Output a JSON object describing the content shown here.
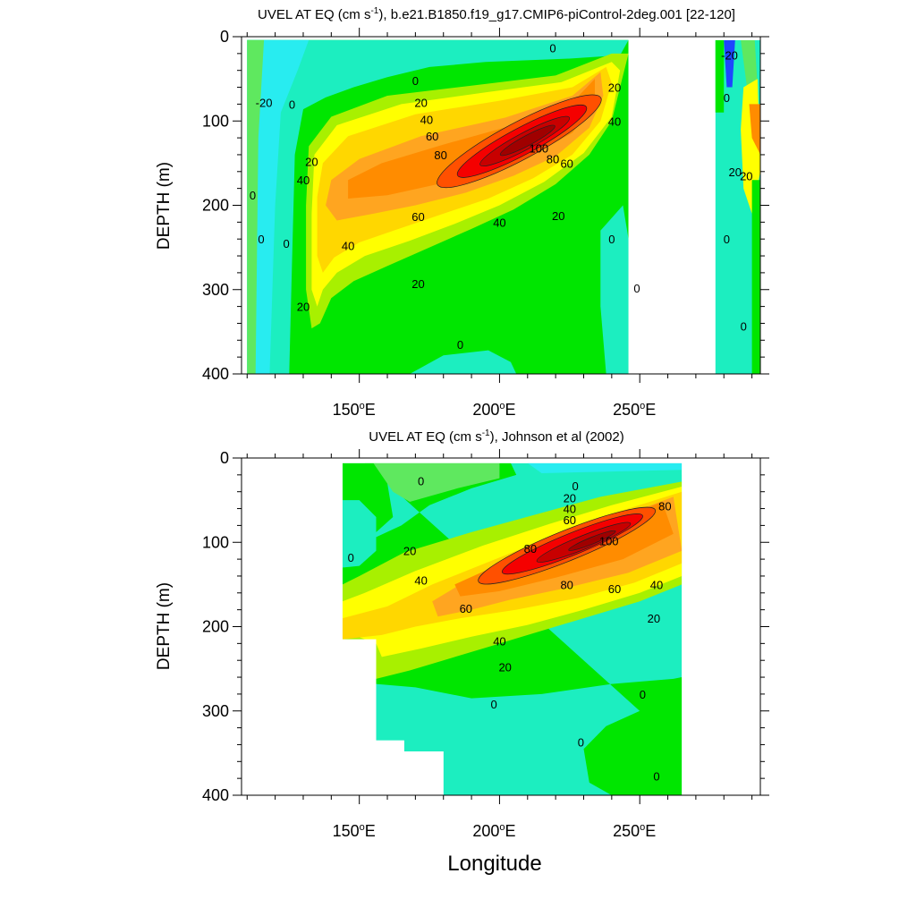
{
  "chart_data": [
    {
      "type": "contour",
      "title_main": "UVEL AT EQ (cm s",
      "title_sup": "-1",
      "title_rest": "), b.e21.B1850.f19_g17.CMIP6-piControl-2deg.001 [22-120]",
      "ylabel": "DEPTH (m)",
      "xlabel": "",
      "xlim": [
        108,
        293
      ],
      "ylim": [
        0,
        400
      ],
      "y_reversed": true,
      "x_ticks": [
        150,
        200,
        250
      ],
      "x_tick_labels": [
        "150",
        "200",
        "250"
      ],
      "x_tick_suffix": "E",
      "y_ticks": [
        0,
        100,
        200,
        300,
        400
      ],
      "y_tick_labels": [
        "0",
        "100",
        "200",
        "300",
        "400"
      ],
      "contour_levels": [
        -20,
        0,
        20,
        40,
        60,
        80,
        100
      ],
      "core": {
        "lon": 208,
        "depth": 125,
        "max_speed": 100
      },
      "contour_labels": [
        {
          "text": "0",
          "lon": 219,
          "depth": 13
        },
        {
          "text": "0",
          "lon": 170,
          "depth": 52
        },
        {
          "text": "20",
          "lon": 172,
          "depth": 78
        },
        {
          "text": "40",
          "lon": 174,
          "depth": 98
        },
        {
          "text": "60",
          "lon": 176,
          "depth": 118
        },
        {
          "text": "80",
          "lon": 179,
          "depth": 140
        },
        {
          "text": "100",
          "lon": 214,
          "depth": 132
        },
        {
          "text": "80",
          "lon": 219,
          "depth": 145
        },
        {
          "text": "60",
          "lon": 224,
          "depth": 150
        },
        {
          "text": "40",
          "lon": 241,
          "depth": 100
        },
        {
          "text": "20",
          "lon": 241,
          "depth": 60
        },
        {
          "text": "60",
          "lon": 171,
          "depth": 213
        },
        {
          "text": "40",
          "lon": 200,
          "depth": 220
        },
        {
          "text": "20",
          "lon": 221,
          "depth": 212
        },
        {
          "text": "40",
          "lon": 146,
          "depth": 248
        },
        {
          "text": "20",
          "lon": 171,
          "depth": 293
        },
        {
          "text": "20",
          "lon": 133,
          "depth": 148
        },
        {
          "text": "40",
          "lon": 130,
          "depth": 170
        },
        {
          "text": "20",
          "lon": 130,
          "depth": 320
        },
        {
          "text": "0",
          "lon": 186,
          "depth": 365
        },
        {
          "text": "-20",
          "lon": 116,
          "depth": 78
        },
        {
          "text": "0",
          "lon": 126,
          "depth": 80
        },
        {
          "text": "0",
          "lon": 112,
          "depth": 188
        },
        {
          "text": "0",
          "lon": 115,
          "depth": 240
        },
        {
          "text": "0",
          "lon": 124,
          "depth": 245
        },
        {
          "text": "0",
          "lon": 240,
          "depth": 240
        },
        {
          "text": "0",
          "lon": 249,
          "depth": 298
        },
        {
          "text": "-20",
          "lon": 282,
          "depth": 22
        },
        {
          "text": "0",
          "lon": 281,
          "depth": 72
        },
        {
          "text": "20",
          "lon": 284,
          "depth": 160
        },
        {
          "text": "20",
          "lon": 288,
          "depth": 165
        },
        {
          "text": "0",
          "lon": 281,
          "depth": 240
        },
        {
          "text": "0",
          "lon": 287,
          "depth": 343
        }
      ]
    },
    {
      "type": "contour",
      "title_main": "UVEL AT EQ (cm s",
      "title_sup": "-1",
      "title_rest": "), Johnson et al (2002)",
      "ylabel": "DEPTH (m)",
      "xlabel": "Longitude",
      "xlim": [
        108,
        293
      ],
      "ylim": [
        0,
        400
      ],
      "y_reversed": true,
      "x_ticks": [
        150,
        200,
        250
      ],
      "x_tick_labels": [
        "150",
        "200",
        "250"
      ],
      "x_tick_suffix": "E",
      "y_ticks": [
        0,
        100,
        200,
        300,
        400
      ],
      "y_tick_labels": [
        "0",
        "100",
        "200",
        "300",
        "400"
      ],
      "contour_levels": [
        0,
        20,
        40,
        60,
        80,
        100
      ],
      "core": {
        "lon": 225,
        "depth": 100,
        "max_speed": 100
      },
      "contour_labels": [
        {
          "text": "0",
          "lon": 172,
          "depth": 27
        },
        {
          "text": "0",
          "lon": 227,
          "depth": 33
        },
        {
          "text": "20",
          "lon": 225,
          "depth": 47
        },
        {
          "text": "40",
          "lon": 225,
          "depth": 60
        },
        {
          "text": "60",
          "lon": 225,
          "depth": 73
        },
        {
          "text": "80",
          "lon": 259,
          "depth": 57
        },
        {
          "text": "80",
          "lon": 211,
          "depth": 107
        },
        {
          "text": "100",
          "lon": 239,
          "depth": 98
        },
        {
          "text": "80",
          "lon": 224,
          "depth": 150
        },
        {
          "text": "60",
          "lon": 241,
          "depth": 155
        },
        {
          "text": "40",
          "lon": 256,
          "depth": 150
        },
        {
          "text": "20",
          "lon": 168,
          "depth": 110
        },
        {
          "text": "40",
          "lon": 172,
          "depth": 145
        },
        {
          "text": "60",
          "lon": 188,
          "depth": 178
        },
        {
          "text": "20",
          "lon": 255,
          "depth": 190
        },
        {
          "text": "40",
          "lon": 200,
          "depth": 217
        },
        {
          "text": "20",
          "lon": 202,
          "depth": 248
        },
        {
          "text": "0",
          "lon": 147,
          "depth": 118
        },
        {
          "text": "0",
          "lon": 198,
          "depth": 292
        },
        {
          "text": "0",
          "lon": 251,
          "depth": 280
        },
        {
          "text": "0",
          "lon": 229,
          "depth": 337
        },
        {
          "text": "0",
          "lon": 256,
          "depth": 377
        }
      ]
    }
  ],
  "palette": {
    "c_neg20": "#28ecf0",
    "c_0": "#1ceec0",
    "c_0b": "#5fe85f",
    "c_20": "#00e600",
    "c_30": "#a8f000",
    "c_40": "#ffff00",
    "c_50": "#ffd700",
    "c_60": "#ffa520",
    "c_70": "#ff8c00",
    "c_80": "#ff5000",
    "c_90": "#f50000",
    "c_100": "#c80000",
    "c_110": "#a00000",
    "c_deep": "#1e46ff"
  }
}
